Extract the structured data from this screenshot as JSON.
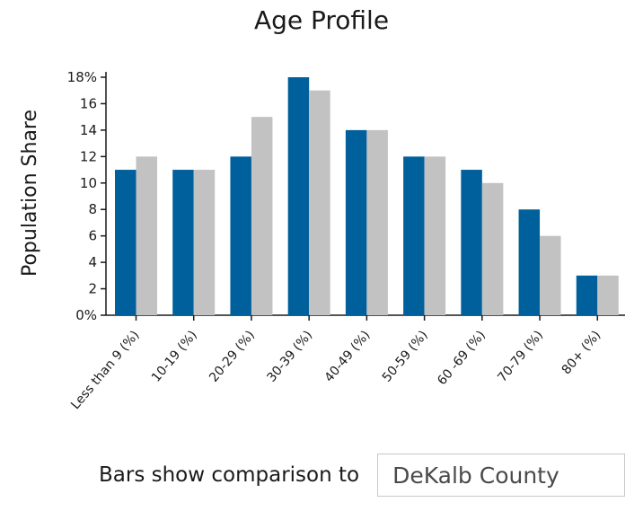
{
  "chart_data": {
    "type": "bar",
    "title": "Age Profile",
    "ylabel": "Population Share",
    "xlabel": "",
    "ylim": [
      0,
      18
    ],
    "yticks": [
      "0%",
      "2",
      "4",
      "6",
      "8",
      "10",
      "12",
      "14",
      "16",
      "18%"
    ],
    "categories": [
      "Less than 9 (%)",
      "10-19 (%)",
      "20-29 (%)",
      "30-39 (%)",
      "40-49 (%)",
      "50-59 (%)",
      "60 -69 (%)",
      "70-79 (%)",
      "80+ (%)"
    ],
    "series": [
      {
        "values": [
          11,
          11,
          12,
          18,
          14,
          12,
          11,
          8,
          3
        ],
        "color": "#00609c"
      },
      {
        "values": [
          12,
          11,
          15,
          17,
          14,
          12,
          10,
          6,
          3
        ],
        "color": "#c2c2c2"
      }
    ],
    "grid": false,
    "legend": "none"
  },
  "comparison": {
    "label": "Bars show comparison to",
    "selected": "DeKalb County"
  }
}
